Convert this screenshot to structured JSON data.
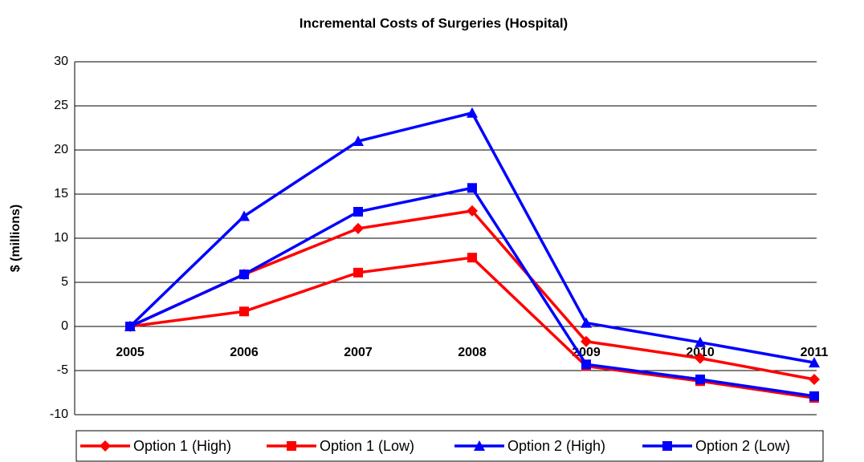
{
  "chart_data": {
    "type": "line",
    "title": "Incremental Costs of Surgeries (Hospital)",
    "y_label": "$ (millions)",
    "categories": [
      "2005",
      "2006",
      "2007",
      "2008",
      "2009",
      "2010",
      "2011"
    ],
    "series": [
      {
        "name": "Option 1 (High)",
        "color": "#ff0000",
        "marker": "diamond",
        "values": [
          0,
          5.9,
          11.1,
          13.1,
          -1.7,
          -3.6,
          -6.0
        ]
      },
      {
        "name": "Option 1 (Low)",
        "color": "#ff0000",
        "marker": "square",
        "values": [
          0,
          1.7,
          6.1,
          7.8,
          -4.5,
          -6.2,
          -8.1
        ]
      },
      {
        "name": "Option 2 (High)",
        "color": "#0000ff",
        "marker": "triangle",
        "values": [
          0,
          12.5,
          21.0,
          24.2,
          0.4,
          -1.8,
          -4.1
        ]
      },
      {
        "name": "Option 2 (Low)",
        "color": "#0000ff",
        "marker": "square",
        "values": [
          0,
          5.9,
          13.0,
          15.7,
          -4.3,
          -6.0,
          -7.9
        ]
      }
    ],
    "ylim": [
      -10,
      30
    ],
    "yticks": [
      -10,
      -5,
      0,
      5,
      10,
      15,
      20,
      25,
      30
    ],
    "grid": true,
    "legend": "bottom"
  }
}
